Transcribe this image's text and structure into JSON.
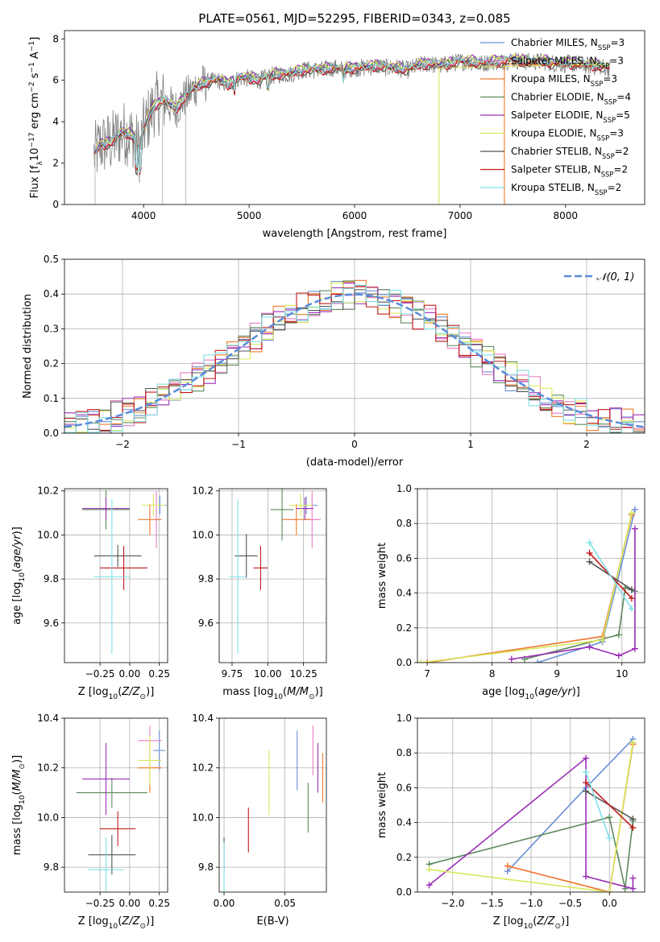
{
  "colors": {
    "Chabrier MILES": "#6a8fd6",
    "Salpeter MILES": "#e97ec6",
    "Kroupa MILES": "#f07a2a",
    "Chabrier ELODIE": "#5c8a5c",
    "Salpeter ELODIE": "#9a2fb5",
    "Kroupa ELODIE": "#d8e85a",
    "Chabrier STELIB": "#555555",
    "Salpeter STELIB": "#c21a1a",
    "Kroupa STELIB": "#7fe0e6",
    "spectrum": "#808080",
    "normal_curve": "#5b8bd9",
    "grid": "#b0b0b0"
  },
  "chart_data": [
    {
      "id": "spectrum",
      "type": "line",
      "title": "PLATE=0561, MJD=52295, FIBERID=0343, z=0.085",
      "xlabel": "wavelength [Angstrom, rest frame]",
      "ylabel": "Flux [f_λ10^-17 erg cm^-2 s^-1 A^-1]",
      "xlim": [
        3250,
        8750
      ],
      "ylim": [
        0,
        8.4
      ],
      "xticks": [
        4000,
        5000,
        6000,
        7000,
        8000
      ],
      "yticks": [
        0,
        2,
        4,
        6,
        8
      ],
      "grid": false,
      "legend_position": "right",
      "legend": [
        {
          "model": "Chabrier MILES",
          "n": 3
        },
        {
          "model": "Salpeter MILES",
          "n": 3
        },
        {
          "model": "Kroupa MILES",
          "n": 3
        },
        {
          "model": "Chabrier ELODIE",
          "n": 4
        },
        {
          "model": "Salpeter ELODIE",
          "n": 5
        },
        {
          "model": "Kroupa ELODIE",
          "n": 3
        },
        {
          "model": "Chabrier STELIB",
          "n": 2
        },
        {
          "model": "Salpeter STELIB",
          "n": 2
        },
        {
          "model": "Kroupa STELIB",
          "n": 2
        }
      ],
      "continuum": [
        [
          3530,
          2.4
        ],
        [
          3600,
          2.9
        ],
        [
          3700,
          3.0
        ],
        [
          3800,
          3.5
        ],
        [
          3900,
          3.3
        ],
        [
          3960,
          2.6
        ],
        [
          4000,
          3.6
        ],
        [
          4100,
          4.8
        ],
        [
          4200,
          5.0
        ],
        [
          4300,
          4.6
        ],
        [
          4400,
          5.2
        ],
        [
          4500,
          5.7
        ],
        [
          4600,
          5.9
        ],
        [
          4700,
          6.0
        ],
        [
          4800,
          5.8
        ],
        [
          4900,
          6.1
        ],
        [
          5000,
          6.1
        ],
        [
          5100,
          6.0
        ],
        [
          5200,
          6.2
        ],
        [
          5300,
          6.3
        ],
        [
          5400,
          6.3
        ],
        [
          5500,
          6.5
        ],
        [
          5600,
          6.5
        ],
        [
          5700,
          6.5
        ],
        [
          5800,
          6.6
        ],
        [
          5900,
          6.5
        ],
        [
          6000,
          6.6
        ],
        [
          6100,
          6.6
        ],
        [
          6200,
          6.7
        ],
        [
          6300,
          6.6
        ],
        [
          6400,
          6.6
        ],
        [
          6500,
          6.5
        ],
        [
          6600,
          6.7
        ],
        [
          6700,
          6.8
        ],
        [
          6800,
          6.7
        ],
        [
          6900,
          6.8
        ],
        [
          7000,
          6.9
        ],
        [
          7100,
          6.9
        ],
        [
          7200,
          6.8
        ],
        [
          7300,
          6.9
        ],
        [
          7400,
          6.9
        ],
        [
          7500,
          7.0
        ],
        [
          7600,
          6.9
        ],
        [
          7700,
          6.9
        ],
        [
          7800,
          6.9
        ],
        [
          7900,
          6.8
        ],
        [
          8000,
          6.8
        ],
        [
          8100,
          6.8
        ],
        [
          8200,
          6.7
        ],
        [
          8300,
          6.7
        ],
        [
          8400,
          6.6
        ]
      ]
    },
    {
      "id": "residuals",
      "type": "line",
      "xlabel": "(data-model)/error",
      "ylabel": "Normed distribution",
      "xlim": [
        -2.5,
        2.5
      ],
      "ylim": [
        0,
        0.5
      ],
      "xticks": [
        -2,
        -1,
        0,
        1,
        2
      ],
      "xtick_labels": [
        "−2",
        "−1",
        "0",
        "1",
        "2"
      ],
      "yticks": [
        0,
        0.1,
        0.2,
        0.3,
        0.4,
        0.5
      ],
      "ytick_labels": [
        "0.0",
        "0.1",
        "0.2",
        "0.3",
        "0.4",
        "0.5"
      ],
      "grid": true,
      "legend_position": "top-right",
      "legend_label": "𝒩(0, 1)",
      "curve": "normal(0,1)"
    },
    {
      "id": "age_vs_Z",
      "type": "scatter",
      "xlabel": "Z [log10(Z/Z☉)]",
      "ylabel": "age  [log10(age/yr)]",
      "xlim": [
        -0.55,
        0.32
      ],
      "ylim": [
        9.42,
        10.21
      ],
      "xticks": [
        -0.25,
        0.0,
        0.25
      ],
      "xtick_labels": [
        "−0.25",
        "0.00",
        "0.25"
      ],
      "yticks": [
        9.6,
        9.8,
        10.0,
        10.2
      ],
      "ytick_labels": [
        "9.6",
        "9.8",
        "10.0",
        "10.2"
      ],
      "grid": true,
      "points": [
        {
          "model": "Chabrier MILES",
          "x": 0.255,
          "y": 10.135,
          "xerr": 0.055,
          "yerr": 0.04
        },
        {
          "model": "Salpeter MILES",
          "x": 0.225,
          "y": 10.07,
          "xerr": 0.015,
          "yerr": 0.13
        },
        {
          "model": "Kroupa MILES",
          "x": 0.17,
          "y": 10.07,
          "xerr": 0.1,
          "yerr": 0.07
        },
        {
          "model": "Chabrier ELODIE",
          "x": -0.2,
          "y": 10.115,
          "xerr": 0.2,
          "yerr": 0.09
        },
        {
          "model": "Salpeter ELODIE",
          "x": -0.2,
          "y": 10.12,
          "xerr": 0.2,
          "yerr": 0.05
        },
        {
          "model": "Kroupa ELODIE",
          "x": 0.2,
          "y": 10.135,
          "xerr": 0.1,
          "yerr": 0.05
        },
        {
          "model": "Chabrier STELIB",
          "x": -0.1,
          "y": 9.905,
          "xerr": 0.2,
          "yerr": 0.05
        },
        {
          "model": "Salpeter STELIB",
          "x": -0.05,
          "y": 9.85,
          "xerr": 0.2,
          "yerr": 0.1
        },
        {
          "model": "Kroupa STELIB",
          "x": -0.15,
          "y": 9.81,
          "xerr": 0.15,
          "yerr": 0.35
        }
      ]
    },
    {
      "id": "age_vs_mass",
      "type": "scatter",
      "xlabel": "mass [log10(M/M☉)]",
      "ylabel": "",
      "xlim": [
        9.66,
        10.41
      ],
      "ylim": [
        9.42,
        10.21
      ],
      "xticks": [
        9.75,
        10.0,
        10.25
      ],
      "xtick_labels": [
        "9.75",
        "10.00",
        "10.25"
      ],
      "yticks": [
        9.6,
        9.8,
        10.0,
        10.2
      ],
      "ytick_labels": [
        "9.6",
        "9.8",
        "10.0",
        "10.2"
      ],
      "grid": true,
      "points": [
        {
          "model": "Chabrier MILES",
          "x": 10.27,
          "y": 10.135,
          "xerr": 0.08,
          "yerr": 0.04
        },
        {
          "model": "Salpeter MILES",
          "x": 10.31,
          "y": 10.07,
          "xerr": 0.06,
          "yerr": 0.13
        },
        {
          "model": "Kroupa MILES",
          "x": 10.2,
          "y": 10.07,
          "xerr": 0.1,
          "yerr": 0.07
        },
        {
          "model": "Chabrier ELODIE",
          "x": 10.1,
          "y": 10.115,
          "xerr": 0.08,
          "yerr": 0.14
        },
        {
          "model": "Salpeter ELODIE",
          "x": 10.26,
          "y": 10.12,
          "xerr": 0.06,
          "yerr": 0.05
        },
        {
          "model": "Kroupa ELODIE",
          "x": 10.23,
          "y": 10.135,
          "xerr": 0.08,
          "yerr": 0.05
        },
        {
          "model": "Chabrier STELIB",
          "x": 9.85,
          "y": 9.905,
          "xerr": 0.08,
          "yerr": 0.1
        },
        {
          "model": "Salpeter STELIB",
          "x": 9.95,
          "y": 9.85,
          "xerr": 0.05,
          "yerr": 0.1
        },
        {
          "model": "Kroupa STELIB",
          "x": 9.79,
          "y": 9.81,
          "xerr": 0.06,
          "yerr": 0.35
        }
      ]
    },
    {
      "id": "weight_vs_age",
      "type": "line",
      "xlabel": "age  [log10(age/yr)]",
      "ylabel": "mass weight",
      "xlim": [
        6.85,
        10.35
      ],
      "ylim": [
        0,
        1.0
      ],
      "xticks": [
        7,
        8,
        9,
        10
      ],
      "xtick_labels": [
        "7",
        "8",
        "9",
        "10"
      ],
      "yticks": [
        0,
        0.2,
        0.4,
        0.6,
        0.8,
        1.0
      ],
      "ytick_labels": [
        "0.0",
        "0.2",
        "0.4",
        "0.6",
        "0.8",
        "1.0"
      ],
      "grid": true,
      "series": [
        {
          "model": "Chabrier MILES",
          "x": [
            8.7,
            9.7,
            10.2
          ],
          "y": [
            0.0,
            0.12,
            0.88
          ]
        },
        {
          "model": "Salpeter MILES",
          "x": [
            7.0,
            9.7,
            10.15
          ],
          "y": [
            0.0,
            0.15,
            0.85
          ]
        },
        {
          "model": "Kroupa MILES",
          "x": [
            7.0,
            9.7,
            10.15
          ],
          "y": [
            0.0,
            0.15,
            0.85
          ]
        },
        {
          "model": "Chabrier ELODIE",
          "x": [
            8.5,
            9.95,
            10.05,
            10.2
          ],
          "y": [
            0.02,
            0.16,
            0.43,
            0.41
          ]
        },
        {
          "model": "Salpeter ELODIE",
          "x": [
            8.3,
            9.5,
            9.95,
            10.2,
            10.2
          ],
          "y": [
            0.02,
            0.09,
            0.04,
            0.08,
            0.77
          ]
        },
        {
          "model": "Kroupa ELODIE",
          "x": [
            6.9,
            9.7,
            10.15
          ],
          "y": [
            0.0,
            0.13,
            0.86
          ]
        },
        {
          "model": "Chabrier STELIB",
          "x": [
            9.5,
            10.15
          ],
          "y": [
            0.58,
            0.42
          ]
        },
        {
          "model": "Salpeter STELIB",
          "x": [
            9.5,
            10.15
          ],
          "y": [
            0.63,
            0.37
          ]
        },
        {
          "model": "Kroupa STELIB",
          "x": [
            9.5,
            10.15
          ],
          "y": [
            0.69,
            0.31
          ]
        }
      ]
    },
    {
      "id": "mass_vs_Z",
      "type": "scatter",
      "xlabel": "Z [log10(Z/Z☉)]",
      "ylabel": "mass [log10(M/M☉)]",
      "xlim": [
        -0.55,
        0.32
      ],
      "ylim": [
        9.7,
        10.4
      ],
      "xticks": [
        -0.25,
        0.0,
        0.25
      ],
      "xtick_labels": [
        "−0.25",
        "0.00",
        "0.25"
      ],
      "yticks": [
        9.8,
        10.0,
        10.2,
        10.4
      ],
      "ytick_labels": [
        "9.8",
        "10.0",
        "10.2",
        "10.4"
      ],
      "grid": true,
      "points": [
        {
          "model": "Chabrier MILES",
          "x": 0.25,
          "y": 10.27,
          "xerr": 0.05,
          "yerr": 0.08
        },
        {
          "model": "Salpeter MILES",
          "x": 0.17,
          "y": 10.31,
          "xerr": 0.1,
          "yerr": 0.06
        },
        {
          "model": "Kroupa MILES",
          "x": 0.17,
          "y": 10.2,
          "xerr": 0.1,
          "yerr": 0.1
        },
        {
          "model": "Chabrier ELODIE",
          "x": -0.15,
          "y": 10.1,
          "xerr": 0.3,
          "yerr": 0.06
        },
        {
          "model": "Salpeter ELODIE",
          "x": -0.2,
          "y": 10.155,
          "xerr": 0.2,
          "yerr": 0.145
        },
        {
          "model": "Kroupa ELODIE",
          "x": 0.17,
          "y": 10.23,
          "xerr": 0.1,
          "yerr": 0.1
        },
        {
          "model": "Chabrier STELIB",
          "x": -0.15,
          "y": 9.85,
          "xerr": 0.2,
          "yerr": 0.08
        },
        {
          "model": "Salpeter STELIB",
          "x": -0.1,
          "y": 9.955,
          "xerr": 0.15,
          "yerr": 0.07
        },
        {
          "model": "Kroupa STELIB",
          "x": -0.2,
          "y": 9.79,
          "xerr": 0.15,
          "yerr": 0.13
        }
      ]
    },
    {
      "id": "mass_vs_EBV",
      "type": "scatter",
      "xlabel": "E(B-V)",
      "ylabel": "",
      "xlim": [
        -0.004,
        0.084
      ],
      "ylim": [
        9.7,
        10.4
      ],
      "xticks": [
        0.0,
        0.05
      ],
      "xtick_labels": [
        "0.00",
        "0.05"
      ],
      "yticks": [
        9.8,
        10.0,
        10.2,
        10.4
      ],
      "ytick_labels": [
        "9.8",
        "10.0",
        "10.2",
        "10.4"
      ],
      "grid": true,
      "points": [
        {
          "model": "Chabrier MILES",
          "x": 0.06,
          "y": 10.23,
          "xerr": 0,
          "yerr": 0.12
        },
        {
          "model": "Salpeter MILES",
          "x": 0.073,
          "y": 10.27,
          "xerr": 0,
          "yerr": 0.1
        },
        {
          "model": "Kroupa MILES",
          "x": 0.081,
          "y": 10.16,
          "xerr": 0,
          "yerr": 0.1
        },
        {
          "model": "Chabrier ELODIE",
          "x": 0.069,
          "y": 10.04,
          "xerr": 0,
          "yerr": 0.1
        },
        {
          "model": "Salpeter ELODIE",
          "x": 0.077,
          "y": 10.2,
          "xerr": 0,
          "yerr": 0.1
        },
        {
          "model": "Kroupa ELODIE",
          "x": 0.037,
          "y": 10.14,
          "xerr": 0,
          "yerr": 0.13
        },
        {
          "model": "Chabrier STELIB",
          "x": 0.0,
          "y": 9.85,
          "xerr": 0,
          "yerr": 0.07
        },
        {
          "model": "Salpeter STELIB",
          "x": 0.02,
          "y": 9.95,
          "xerr": 0,
          "yerr": 0.09
        },
        {
          "model": "Kroupa STELIB",
          "x": 0.0,
          "y": 9.8,
          "xerr": 0,
          "yerr": 0.1
        }
      ]
    },
    {
      "id": "weight_vs_Z",
      "type": "line",
      "xlabel": "Z [log10(Z/Z☉)]",
      "ylabel": "mass weight",
      "xlim": [
        -2.45,
        0.45
      ],
      "ylim": [
        0,
        1.0
      ],
      "xticks": [
        -2.0,
        -1.5,
        -1.0,
        -0.5,
        0.0
      ],
      "xtick_labels": [
        "−2.0",
        "−1.5",
        "−1.0",
        "−0.5",
        "0.0"
      ],
      "yticks": [
        0,
        0.2,
        0.4,
        0.6,
        0.8,
        1.0
      ],
      "ytick_labels": [
        "0.0",
        "0.2",
        "0.4",
        "0.6",
        "0.8",
        "1.0"
      ],
      "grid": true,
      "series": [
        {
          "model": "Chabrier MILES",
          "x": [
            -1.3,
            -0.3,
            0.3
          ],
          "y": [
            0.12,
            0.6,
            0.88
          ]
        },
        {
          "model": "Salpeter MILES",
          "x": [
            -1.3,
            0.0,
            0.3
          ],
          "y": [
            0.15,
            0.0,
            0.85
          ]
        },
        {
          "model": "Kroupa MILES",
          "x": [
            -1.3,
            0.0,
            0.3
          ],
          "y": [
            0.15,
            0.0,
            0.85
          ]
        },
        {
          "model": "Chabrier ELODIE",
          "x": [
            -2.3,
            0.0,
            0.2,
            0.3
          ],
          "y": [
            0.16,
            0.43,
            0.02,
            0.41
          ]
        },
        {
          "model": "Salpeter ELODIE",
          "x": [
            -2.3,
            -0.3,
            -0.3,
            0.3,
            0.3
          ],
          "y": [
            0.04,
            0.77,
            0.09,
            0.02,
            0.08
          ]
        },
        {
          "model": "Kroupa ELODIE",
          "x": [
            -2.3,
            0.0,
            0.3
          ],
          "y": [
            0.13,
            0.0,
            0.86
          ]
        },
        {
          "model": "Chabrier STELIB",
          "x": [
            -0.3,
            0.3
          ],
          "y": [
            0.58,
            0.42
          ]
        },
        {
          "model": "Salpeter STELIB",
          "x": [
            -0.3,
            0.3
          ],
          "y": [
            0.63,
            0.37
          ]
        },
        {
          "model": "Kroupa STELIB",
          "x": [
            -0.3,
            0.0
          ],
          "y": [
            0.69,
            0.31
          ]
        }
      ]
    }
  ]
}
